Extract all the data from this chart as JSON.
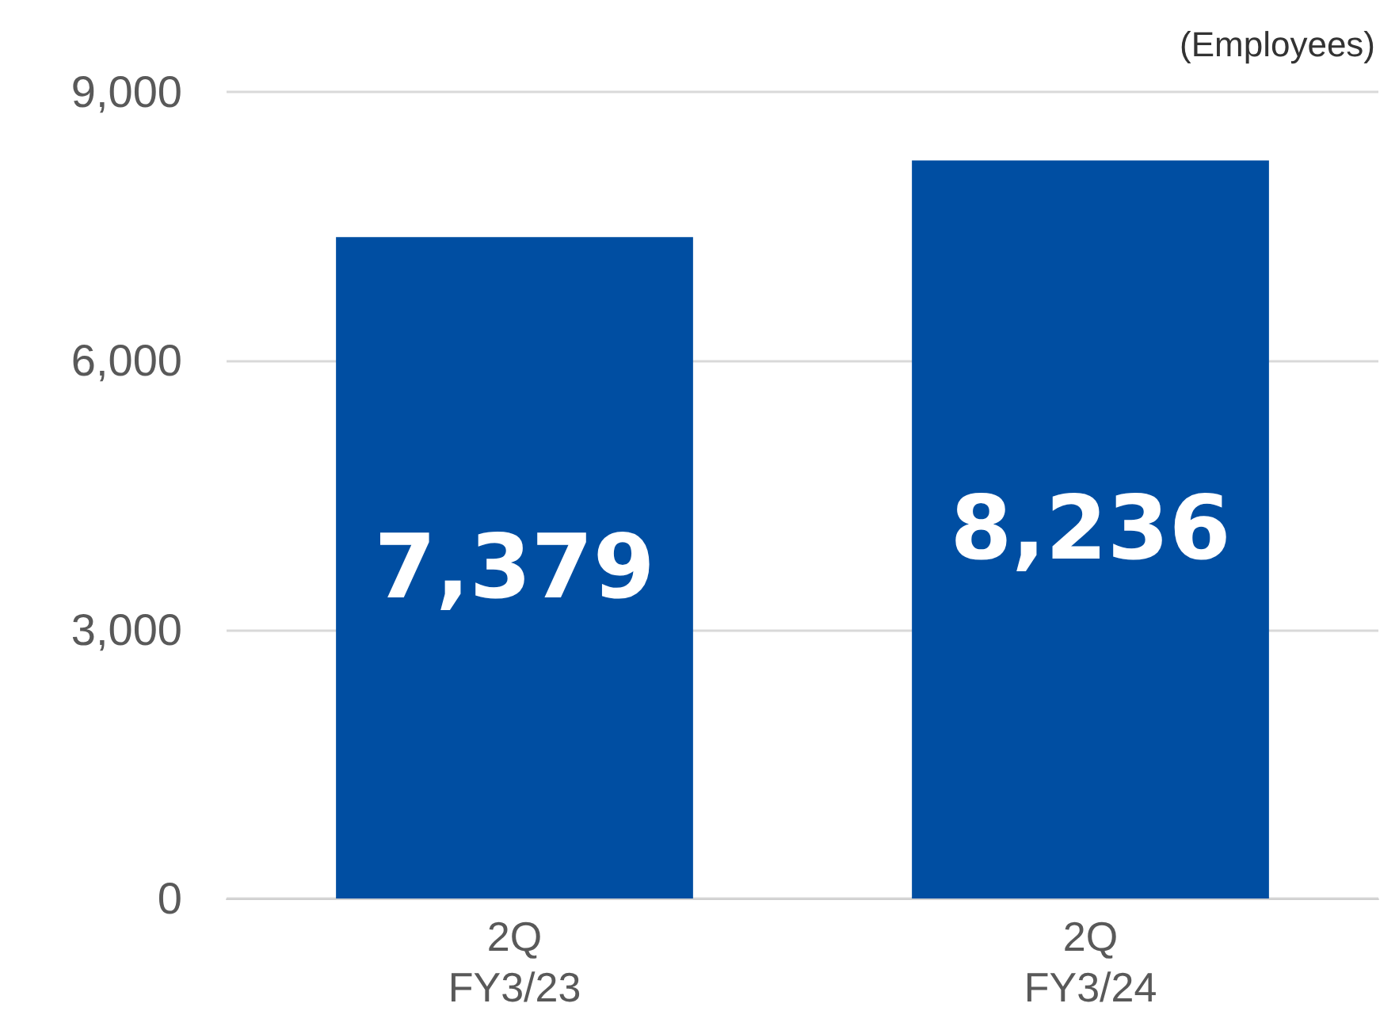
{
  "chart_data": {
    "type": "bar",
    "ylabel": "(Employees)",
    "categories": [
      "2Q\nFY3/23",
      "2Q\nFY3/24"
    ],
    "values": [
      7379,
      8236
    ],
    "value_labels": [
      "7,379",
      "8,236"
    ],
    "color": "#004ea2",
    "ylim": [
      0,
      9000
    ],
    "yticks": [
      0,
      {
        "value": 3000,
        "label": "3,000"
      },
      {
        "value": 6000,
        "label": "6,000"
      },
      {
        "value": 9000,
        "label": "9,000"
      }
    ],
    "grid": "y"
  }
}
